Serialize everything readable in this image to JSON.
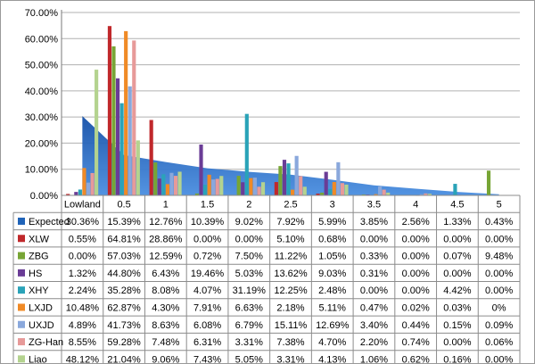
{
  "chart_data": {
    "type": "bar",
    "title": "",
    "xlabel": "",
    "ylabel": "",
    "ylim": [
      0,
      70
    ],
    "y_tick_labels": [
      "0.00%",
      "10.00%",
      "20.00%",
      "30.00%",
      "40.00%",
      "50.00%",
      "60.00%",
      "70.00%"
    ],
    "grid": true,
    "legend": "data table below plot",
    "categories": [
      "Lowland",
      "0.5",
      "1",
      "1.5",
      "2",
      "2.5",
      "3",
      "3.5",
      "4",
      "4.5",
      "5"
    ],
    "area_series": {
      "name": "Expected",
      "color": "#1f63b8",
      "values": [
        30.36,
        15.39,
        12.76,
        10.39,
        9.02,
        7.92,
        5.99,
        3.85,
        2.56,
        1.33,
        0.43
      ],
      "labels": [
        "30.36%",
        "15.39%",
        "12.76%",
        "10.39%",
        "9.02%",
        "7.92%",
        "5.99%",
        "3.85%",
        "2.56%",
        "1.33%",
        "0.43%"
      ]
    },
    "series": [
      {
        "name": "XLW",
        "color": "#c0282b",
        "values": [
          0.55,
          64.81,
          28.86,
          0,
          0,
          5.1,
          0.68,
          0,
          0,
          0,
          0
        ],
        "labels": [
          "0.55%",
          "64.81%",
          "28.86%",
          "0.00%",
          "0.00%",
          "5.10%",
          "0.68%",
          "0.00%",
          "0.00%",
          "0.00%",
          "0.00%"
        ]
      },
      {
        "name": "ZBG",
        "color": "#77a535",
        "values": [
          0,
          57.03,
          12.59,
          0.72,
          7.5,
          11.22,
          1.05,
          0.33,
          0,
          0.07,
          9.48
        ],
        "labels": [
          "0.00%",
          "57.03%",
          "12.59%",
          "0.72%",
          "7.50%",
          "11.22%",
          "1.05%",
          "0.33%",
          "0.00%",
          "0.07%",
          "9.48%"
        ]
      },
      {
        "name": "HS",
        "color": "#6a3c96",
        "values": [
          1.32,
          44.8,
          6.43,
          19.46,
          5.03,
          13.62,
          9.03,
          0.31,
          0,
          0,
          0
        ],
        "labels": [
          "1.32%",
          "44.80%",
          "6.43%",
          "19.46%",
          "5.03%",
          "13.62%",
          "9.03%",
          "0.31%",
          "0.00%",
          "0.00%",
          "0.00%"
        ]
      },
      {
        "name": "XHY",
        "color": "#2aa3b8",
        "values": [
          2.24,
          35.28,
          8.08,
          4.07,
          31.19,
          12.25,
          2.48,
          0,
          0,
          4.42,
          0
        ],
        "labels": [
          "2.24%",
          "35.28%",
          "8.08%",
          "4.07%",
          "31.19%",
          "12.25%",
          "2.48%",
          "0.00%",
          "0.00%",
          "4.42%",
          "0.00%"
        ]
      },
      {
        "name": "LXJD",
        "color": "#f08a26",
        "values": [
          10.48,
          62.87,
          4.3,
          7.91,
          6.63,
          2.18,
          5.11,
          0.47,
          0.02,
          0.03,
          0
        ],
        "labels": [
          "10.48%",
          "62.87%",
          "4.30%",
          "7.91%",
          "6.63%",
          "2.18%",
          "5.11%",
          "0.47%",
          "0.02%",
          "0.03%",
          "0%"
        ]
      },
      {
        "name": "UXJD",
        "color": "#8aa8dc",
        "values": [
          4.89,
          41.73,
          8.63,
          6.08,
          6.79,
          15.11,
          12.69,
          3.4,
          0.44,
          0.15,
          0.09
        ],
        "labels": [
          "4.89%",
          "41.73%",
          "8.63%",
          "6.08%",
          "6.79%",
          "15.11%",
          "12.69%",
          "3.40%",
          "0.44%",
          "0.15%",
          "0.09%"
        ]
      },
      {
        "name": "ZG-Han",
        "color": "#e79a99",
        "values": [
          8.55,
          59.28,
          7.48,
          6.31,
          3.31,
          7.38,
          4.7,
          2.2,
          0.74,
          0,
          0.06
        ],
        "labels": [
          "8.55%",
          "59.28%",
          "7.48%",
          "6.31%",
          "3.31%",
          "7.38%",
          "4.70%",
          "2.20%",
          "0.74%",
          "0.00%",
          "0.06%"
        ]
      },
      {
        "name": "Liao",
        "color": "#b4d38f",
        "values": [
          48.12,
          21.04,
          9.06,
          7.43,
          5.05,
          3.31,
          4.13,
          1.06,
          0.62,
          0.16,
          0
        ],
        "labels": [
          "48.12%",
          "21.04%",
          "9.06%",
          "7.43%",
          "5.05%",
          "3.31%",
          "4.13%",
          "1.06%",
          "0.62%",
          "0.16%",
          "0.00%"
        ]
      }
    ]
  }
}
